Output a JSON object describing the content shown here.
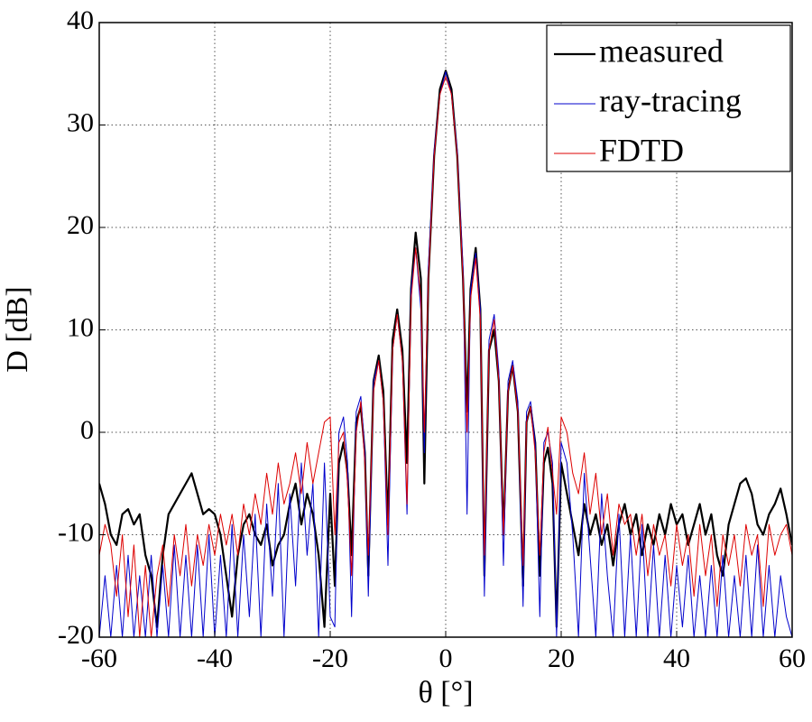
{
  "chart_data": {
    "type": "line",
    "xlabel": "θ [°]",
    "ylabel": "D [dB]",
    "xlim": [
      -60,
      60
    ],
    "ylim": [
      -20,
      40
    ],
    "xticks": [
      -60,
      -40,
      -20,
      0,
      20,
      40,
      60
    ],
    "yticks": [
      -20,
      -10,
      0,
      10,
      20,
      30,
      40
    ],
    "grid": true,
    "legend": "upper right",
    "x": [
      -60,
      -59,
      -58,
      -57,
      -56,
      -55,
      -54,
      -53,
      -52,
      -51,
      -50,
      -49,
      -48,
      -47,
      -46,
      -45,
      -44,
      -43,
      -42,
      -41,
      -40,
      -39,
      -38,
      -37,
      -36,
      -35,
      -34,
      -33,
      -32,
      -31,
      -30,
      -29,
      -28,
      -27,
      -26,
      -25,
      -24,
      -23,
      -22,
      -21,
      -20,
      -19.2,
      -18.5,
      -17.7,
      -17,
      -16.3,
      -15.5,
      -14.7,
      -14,
      -13.4,
      -12.5,
      -11.6,
      -10.8,
      -10,
      -9.2,
      -8.4,
      -7.5,
      -6.7,
      -6,
      -5.2,
      -4.3,
      -3.7,
      -3,
      -2,
      -1,
      0,
      1,
      2,
      3,
      3.7,
      4.3,
      5.2,
      6,
      6.7,
      7.5,
      8.4,
      9.2,
      10,
      10.8,
      11.6,
      12.5,
      13.4,
      14,
      14.7,
      15.5,
      16.3,
      17,
      17.7,
      18.5,
      19.2,
      20,
      21,
      22,
      23,
      24,
      25,
      26,
      27,
      28,
      29,
      30,
      31,
      32,
      33,
      34,
      35,
      36,
      37,
      38,
      39,
      40,
      41,
      42,
      43,
      44,
      45,
      46,
      47,
      48,
      49,
      50,
      51,
      52,
      53,
      54,
      55,
      56,
      57,
      58,
      59,
      60
    ],
    "series": [
      {
        "name": "measured",
        "color": "#000000",
        "width": 2.2,
        "values": [
          -5,
          -7,
          -10,
          -11,
          -8,
          -7.5,
          -9,
          -8,
          -12,
          -14,
          -19,
          -12,
          -8,
          -7,
          -6,
          -5,
          -4,
          -6,
          -8,
          -7.5,
          -8,
          -10,
          -14,
          -18,
          -12,
          -9,
          -8,
          -10,
          -11,
          -9,
          -13,
          -11,
          -10,
          -7,
          -5,
          -9,
          -6,
          -8,
          -12,
          -19,
          -6,
          -15,
          -3,
          -1,
          -4,
          -12,
          1,
          2.5,
          -2,
          -14,
          5,
          7.5,
          4,
          -9,
          9,
          12,
          8,
          -3,
          14,
          19.5,
          15,
          -5,
          15,
          27,
          33.5,
          35.3,
          33.5,
          27,
          15,
          2,
          14,
          18,
          12,
          -14,
          8,
          10,
          5,
          -10,
          4,
          6.5,
          2,
          -15,
          1,
          2.5,
          -1,
          -14,
          -3,
          -1.5,
          -5,
          -19,
          -3,
          -6,
          -9,
          -12,
          -7,
          -10,
          -8,
          -11,
          -9,
          -13,
          -9,
          -7,
          -10,
          -8,
          -12,
          -9,
          -11,
          -8,
          -10,
          -7,
          -9,
          -8,
          -11,
          -9,
          -7,
          -10,
          -8,
          -12,
          -14,
          -9,
          -7,
          -5,
          -4.5,
          -6,
          -9,
          -10,
          -8,
          -7,
          -5.5,
          -8,
          -11
        ]
      },
      {
        "name": "ray-tracing",
        "color": "#0000cc",
        "width": 1,
        "values": [
          -20,
          -14,
          -20,
          -13,
          -20,
          -12,
          -20,
          -14,
          -20,
          -12,
          -20,
          -13,
          -20,
          -11,
          -20,
          -12,
          -20,
          -11,
          -20,
          -10,
          -20,
          -12,
          -20,
          -9,
          -20,
          -10,
          -18,
          -8,
          -20,
          -7,
          -16,
          -5,
          -20,
          -6,
          -15,
          -3,
          -12,
          -5,
          -20,
          -3,
          -18,
          -19,
          0,
          1.5,
          -3,
          -18,
          2,
          3.5,
          -2,
          -16,
          5,
          7,
          3,
          -13,
          8,
          11.5,
          7,
          -8,
          14,
          18,
          12,
          -2,
          16,
          27.5,
          33,
          35.2,
          33,
          27.5,
          16,
          -8,
          14,
          17.5,
          12,
          -16,
          9,
          11.5,
          6,
          -13,
          5,
          7,
          3,
          -17,
          2,
          3,
          -1,
          -18,
          -1,
          0,
          -3,
          -20,
          -1,
          -3,
          -10,
          -20,
          -4,
          -12,
          -20,
          -6,
          -14,
          -20,
          -8,
          -20,
          -10,
          -20,
          -9,
          -20,
          -11,
          -20,
          -12,
          -20,
          -13,
          -19,
          -12,
          -20,
          -14,
          -20,
          -13,
          -20,
          -12,
          -20,
          -14,
          -20,
          -12,
          -20,
          -11,
          -20,
          -13,
          -20,
          -14,
          -18,
          -20
        ]
      },
      {
        "name": "FDTD",
        "color": "#dd0000",
        "width": 1,
        "values": [
          -12,
          -9,
          -11,
          -16,
          -10,
          -18,
          -11,
          -20,
          -13,
          -20,
          -14,
          -11,
          -17,
          -10,
          -14,
          -9,
          -15,
          -10,
          -13,
          -9,
          -12,
          -8,
          -11,
          -8,
          -12,
          -7,
          -10,
          -6,
          -9,
          -4,
          -8,
          -3,
          -7,
          -5,
          -2,
          -6,
          -1,
          -5,
          -2,
          1,
          1.5,
          -10,
          -1,
          0,
          -5,
          -14,
          0,
          3,
          -3,
          -12,
          4,
          7,
          3,
          -10,
          8,
          11.5,
          7,
          -7,
          13,
          18,
          13,
          0,
          15,
          27,
          33,
          34.7,
          33,
          27,
          15,
          0,
          13,
          17,
          11,
          -12,
          8,
          11,
          5,
          -10,
          4,
          6.5,
          2,
          -13,
          1,
          2.5,
          -2,
          -12,
          -2,
          0.5,
          -4,
          -8,
          1.5,
          0,
          -4,
          -6,
          -2,
          -8,
          -4,
          -10,
          -6,
          -12,
          -7,
          -9,
          -8,
          -12,
          -8,
          -14,
          -9,
          -12,
          -10,
          -15,
          -9,
          -13,
          -10,
          -16,
          -9,
          -14,
          -10,
          -17,
          -10,
          -13,
          -10,
          -15,
          -9,
          -12,
          -10,
          -17,
          -9,
          -12,
          -10,
          -9,
          -12
        ]
      }
    ]
  }
}
